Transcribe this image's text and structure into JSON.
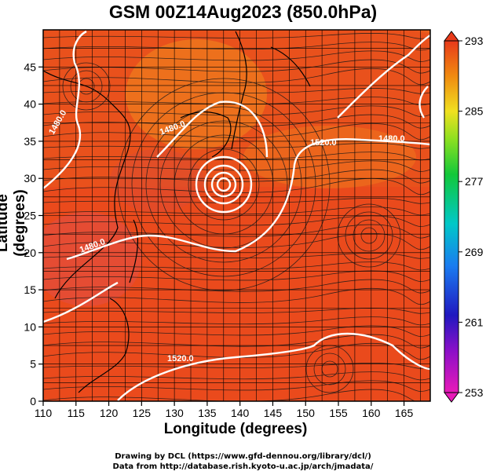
{
  "title": "GSM 00Z14Aug2023 (850.0hPa)",
  "xlabel": "Longitude (degrees)",
  "ylabel": "Latitude  (degrees)",
  "credits": [
    "Drawing by DCL (https://www.gfd-dennou.org/library/dcl/)",
    "Data from http://database.rish.kyoto-u.ac.jp/arch/jmadata/"
  ],
  "map": {
    "lon_range": [
      110,
      169
    ],
    "lat_range": [
      0,
      50
    ],
    "lon_ticks": [
      "110",
      "115",
      "120",
      "125",
      "130",
      "135",
      "140",
      "145",
      "150",
      "155",
      "160",
      "165"
    ],
    "lat_ticks": [
      "0",
      "5",
      "10",
      "15",
      "20",
      "25",
      "30",
      "35",
      "40",
      "45"
    ],
    "contour_labels": [
      "1480.0",
      "1480.0",
      "1520.0",
      "1520.0",
      "1480.0",
      "1480.0",
      "1520.0"
    ],
    "colors": {
      "warm": "#e8401c",
      "cool_green": "#28c83a",
      "contour": "#ffffff"
    }
  },
  "colorbar": {
    "ticks": [
      "293",
      "285",
      "277",
      "269",
      "261",
      "253"
    ],
    "range": [
      253,
      293
    ]
  }
}
